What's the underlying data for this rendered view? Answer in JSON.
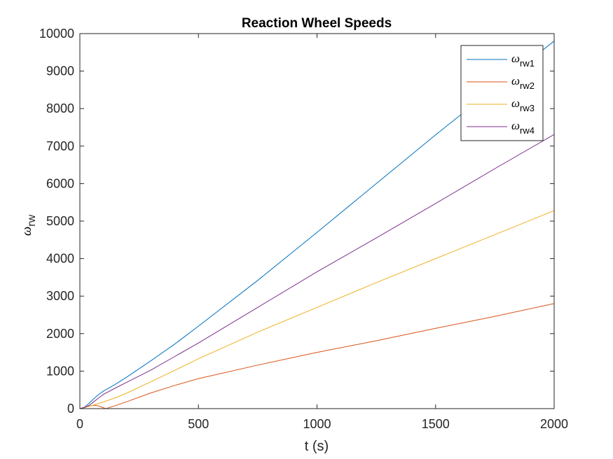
{
  "chart_data": {
    "type": "line",
    "title": "Reaction Wheel Speeds",
    "xlabel": "t (s)",
    "ylabel": {
      "symbol": "ω",
      "subscript": "rw"
    },
    "xlim": [
      0,
      2000
    ],
    "ylim": [
      0,
      10000
    ],
    "xticks": [
      0,
      500,
      1000,
      1500,
      2000
    ],
    "yticks": [
      0,
      1000,
      2000,
      3000,
      4000,
      5000,
      6000,
      7000,
      8000,
      9000,
      10000
    ],
    "grid": false,
    "legend_position": "top-right",
    "series": [
      {
        "name": "ω_rw1",
        "label_symbol": "ω",
        "label_subscript": "rw1",
        "color": "#0072BD",
        "x": [
          0,
          20,
          40,
          60,
          80,
          100,
          150,
          200,
          300,
          400,
          500,
          750,
          1000,
          1250,
          1500,
          1750,
          2000
        ],
        "y": [
          0,
          40,
          150,
          270,
          380,
          470,
          650,
          850,
          1280,
          1720,
          2200,
          3420,
          4700,
          6000,
          7300,
          8560,
          9800
        ]
      },
      {
        "name": "ω_rw2",
        "label_symbol": "ω",
        "label_subscript": "rw2",
        "color": "#D95319",
        "x": [
          0,
          20,
          40,
          60,
          80,
          100,
          110,
          150,
          200,
          300,
          400,
          500,
          750,
          1000,
          1250,
          1500,
          1750,
          2000
        ],
        "y": [
          0,
          40,
          70,
          90,
          70,
          20,
          0,
          80,
          190,
          420,
          620,
          800,
          1160,
          1500,
          1810,
          2140,
          2460,
          2800
        ]
      },
      {
        "name": "ω_rw3",
        "label_symbol": "ω",
        "label_subscript": "rw3",
        "color": "#EDB120",
        "x": [
          0,
          20,
          40,
          60,
          80,
          100,
          150,
          200,
          300,
          400,
          500,
          750,
          1000,
          1250,
          1500,
          1750,
          2000
        ],
        "y": [
          0,
          30,
          60,
          100,
          140,
          180,
          290,
          420,
          720,
          1020,
          1330,
          2040,
          2700,
          3360,
          4000,
          4640,
          5280
        ]
      },
      {
        "name": "ω_rw4",
        "label_symbol": "ω",
        "label_subscript": "rw4",
        "color": "#7E2F8E",
        "x": [
          0,
          20,
          40,
          60,
          80,
          100,
          150,
          200,
          300,
          400,
          500,
          750,
          1000,
          1250,
          1500,
          1750,
          2000
        ],
        "y": [
          0,
          30,
          90,
          190,
          290,
          380,
          550,
          710,
          1030,
          1390,
          1750,
          2700,
          3650,
          4550,
          5470,
          6400,
          7310
        ]
      }
    ]
  }
}
